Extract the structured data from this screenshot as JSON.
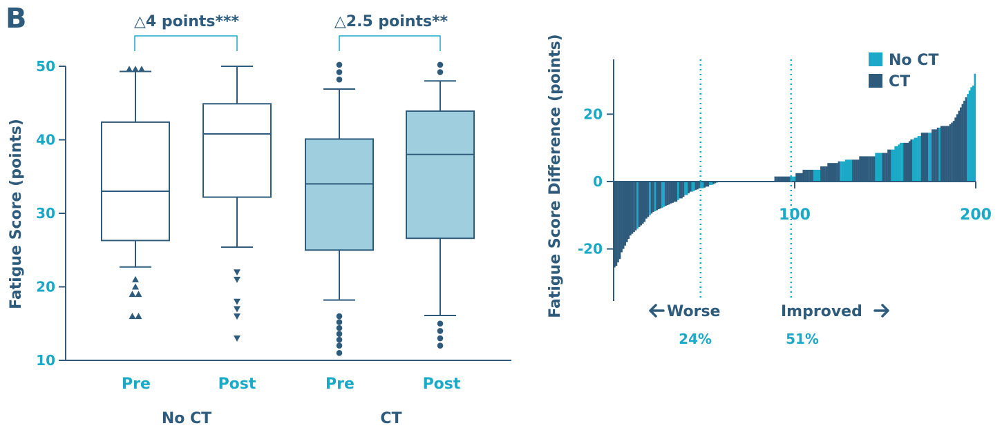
{
  "panel_label": "B",
  "colors": {
    "navy": "#2e5b7c",
    "teal": "#1aa9c6",
    "box_fill_ct": "#9fcfde",
    "box_fill_noct": "#ffffff"
  },
  "chart_data": [
    {
      "type": "box",
      "ylabel": "Fatigue Score (points)",
      "ylim": [
        10,
        50
      ],
      "yticks": [
        "10",
        "20",
        "30",
        "40",
        "50"
      ],
      "groups": [
        {
          "name": "No CT",
          "categories": [
            "Pre",
            "Post"
          ],
          "annotation": "△4 points***"
        },
        {
          "name": "CT",
          "categories": [
            "Pre",
            "Post"
          ],
          "annotation": "△2.5 points**"
        }
      ],
      "boxes": [
        {
          "group": "No CT",
          "category": "Pre",
          "whisker_low": 22.7,
          "q1": 26.3,
          "median": 33,
          "q3": 42.4,
          "whisker_high": 49.3,
          "outlier_marker": "triangle-up",
          "outliers": [
            16,
            16,
            19,
            19,
            20,
            21,
            49.6,
            49.6,
            49.6
          ]
        },
        {
          "group": "No CT",
          "category": "Post",
          "whisker_low": 25.4,
          "q1": 32.2,
          "median": 40.8,
          "q3": 44.9,
          "whisker_high": 50,
          "outlier_marker": "triangle-down",
          "outliers": [
            13,
            16,
            17,
            18,
            21,
            22
          ]
        },
        {
          "group": "CT",
          "category": "Pre",
          "whisker_low": 18.2,
          "q1": 25,
          "median": 34,
          "q3": 40.1,
          "whisker_high": 46.9,
          "outlier_marker": "circle",
          "outliers": [
            11,
            12,
            12.8,
            13.6,
            14.4,
            15.2,
            16,
            48.2,
            49.2,
            50.2
          ]
        },
        {
          "group": "CT",
          "category": "Post",
          "whisker_low": 16.1,
          "q1": 26.6,
          "median": 38,
          "q3": 43.9,
          "whisker_high": 48,
          "outlier_marker": "circle",
          "outliers": [
            12,
            13,
            14,
            15,
            49.2,
            50.2
          ]
        }
      ]
    },
    {
      "type": "bar",
      "ylabel": "Fatigue Score Difference (points)",
      "ylim": [
        -35,
        35
      ],
      "xlim": [
        0,
        200
      ],
      "yticks": [
        "-20",
        "0",
        "20"
      ],
      "xticks": [
        "100",
        "200"
      ],
      "legend_position": "top-right",
      "legend": [
        {
          "name": "No CT",
          "color": "#1aa9c6"
        },
        {
          "name": "CT",
          "color": "#2e5b7c"
        }
      ],
      "reference_lines_x": [
        48,
        98
      ],
      "worse_label": "Worse",
      "improved_label": "Improved",
      "worse_pct": "24%",
      "improved_pct": "51%",
      "values": [
        -25.5,
        -25,
        -24,
        -23,
        -21,
        -20,
        -19,
        -18,
        -17,
        -16,
        -15.5,
        -15,
        -14.5,
        -14,
        -13.5,
        -13,
        -12.5,
        -12,
        -11,
        -10.5,
        -10,
        -9.5,
        -9,
        -8.8,
        -8.5,
        -8.2,
        -8,
        -7.8,
        -7.5,
        -7.2,
        -7,
        -6.8,
        -6.5,
        -6.3,
        -6,
        -6,
        -5.5,
        -5,
        -5,
        -4.5,
        -4,
        -4,
        -3.5,
        -3,
        -3,
        -2.8,
        -2.5,
        -2.3,
        -2,
        -2,
        -2,
        -1.8,
        -1.5,
        -1.5,
        -1,
        -1,
        -0.8,
        -0.5,
        -0.3,
        -0.2,
        0,
        0,
        0,
        0,
        0,
        0,
        0,
        0,
        0,
        0,
        0,
        0,
        0,
        0,
        0,
        0,
        0,
        0,
        0,
        0,
        0,
        0,
        0,
        0,
        0,
        0,
        0,
        0,
        0,
        0,
        0,
        1.5,
        1.5,
        1.5,
        1.5,
        1.5,
        1.5,
        1.5,
        1.5,
        1.5,
        1.5,
        1.5,
        1.5,
        2.5,
        2.5,
        2.5,
        2.5,
        3.5,
        3.5,
        3.5,
        3.5,
        3.5,
        3.5,
        3.5,
        3.5,
        3.5,
        3.5,
        4.5,
        4.5,
        4.5,
        4.5,
        5.5,
        5.5,
        5.5,
        5.5,
        5.5,
        5.5,
        6,
        6,
        6,
        6,
        6.5,
        6.5,
        6.5,
        6.5,
        6.5,
        6.5,
        6.5,
        6.5,
        7.5,
        7.5,
        7.5,
        7.5,
        7.5,
        7.5,
        7.5,
        7.5,
        7.5,
        8.5,
        8.5,
        8.5,
        8.5,
        8.5,
        8.5,
        8.5,
        9.5,
        9.5,
        9.5,
        9.5,
        10.5,
        10.5,
        11,
        11.5,
        11.5,
        11.5,
        11.5,
        11.5,
        12,
        12.5,
        12.5,
        13,
        13,
        13.5,
        13.5,
        14.5,
        14.5,
        14.5,
        14.5,
        14.5,
        14.5,
        15.5,
        15.5,
        15.5,
        16,
        16,
        16.5,
        16.5,
        16.5,
        16.5,
        16.5,
        17,
        17.5,
        18,
        19,
        20,
        21,
        22,
        23,
        24,
        25,
        26,
        27,
        28,
        28.5,
        32
      ],
      "group_order_ct": [
        0,
        1,
        2,
        3,
        4,
        5,
        6,
        7,
        8,
        9,
        10,
        11,
        12,
        14,
        15,
        16,
        17,
        18,
        19,
        21,
        22,
        24,
        25,
        26,
        29,
        30,
        31,
        32,
        33,
        34,
        35,
        37,
        38,
        39,
        42,
        43,
        46,
        47,
        48,
        51,
        52,
        53,
        56,
        57,
        75,
        76,
        77,
        78,
        79,
        80,
        81,
        82,
        83,
        84,
        85,
        86,
        87,
        88,
        89,
        90,
        91,
        92,
        93,
        94,
        95,
        96,
        97,
        98,
        99,
        103,
        104,
        105,
        106,
        107,
        108,
        109,
        110,
        111,
        112,
        117,
        118,
        119,
        120,
        121,
        122,
        123,
        124,
        125,
        126,
        127,
        135,
        136,
        137,
        138,
        139,
        140,
        141,
        142,
        143,
        144,
        145,
        146,
        147,
        152,
        153,
        154,
        155,
        156,
        164,
        165,
        166,
        167,
        168,
        174,
        175,
        176,
        177,
        180,
        181,
        182,
        183,
        185,
        186,
        187,
        188,
        189,
        190,
        191,
        192,
        193,
        194,
        195,
        196,
        197,
        198,
        199
      ]
    }
  ]
}
